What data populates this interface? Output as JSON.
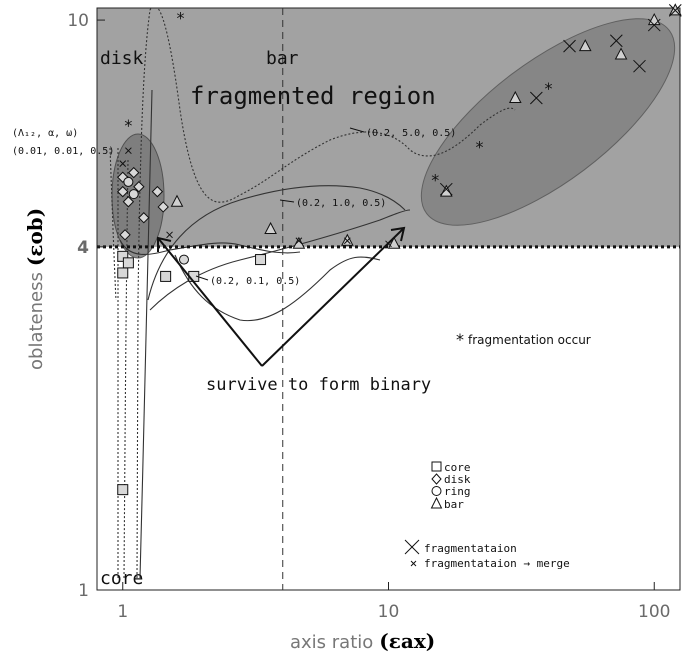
{
  "chart_data": {
    "type": "scatter",
    "xlabel": "axis ratio",
    "xlabel_symbol": "(εax)",
    "ylabel": "oblateness",
    "ylabel_symbol": "(εob)",
    "xscale": "log",
    "yscale": "log",
    "xlim": [
      0.8,
      125
    ],
    "ylim": [
      1,
      10.5
    ],
    "x_ticks": [
      1,
      10,
      100
    ],
    "x_tick_labels": [
      "1",
      "10",
      "100"
    ],
    "y_ticks": [
      1,
      4,
      10
    ],
    "y_tick_labels": [
      "1",
      "4",
      "10"
    ],
    "reference_lines": [
      {
        "orientation": "horizontal",
        "value": 4,
        "style": "dotted"
      },
      {
        "orientation": "vertical",
        "value": 4,
        "style": "dashed"
      }
    ],
    "regions": {
      "core": "core",
      "disk": "disk",
      "bar": "bar",
      "fragmented": "fragmented region"
    },
    "param_header": "(Λ₁₂, α, ω)",
    "annotations": {
      "p1": "(0.01, 0.01, 0.5)",
      "p2": "(0.2, 5.0, 0.5)",
      "p3": "(0.2, 1.0, 0.5)",
      "p4": "(0.2, 0.1, 0.5)",
      "frag_note": "fragmentation occur",
      "survive": "survive to form binary"
    },
    "legend": {
      "core": "core",
      "disk": "disk",
      "ring": "ring",
      "bar": "bar",
      "frag": "fragmentataion",
      "frag_merge": "fragmentataion → merge"
    },
    "series": [
      {
        "name": "core",
        "marker": "square",
        "points": [
          [
            1.0,
            1.5
          ],
          [
            1.0,
            3.6
          ],
          [
            1.0,
            3.85
          ],
          [
            1.05,
            3.75
          ],
          [
            1.45,
            3.55
          ],
          [
            1.85,
            3.55
          ],
          [
            3.3,
            3.8
          ]
        ]
      },
      {
        "name": "disk",
        "marker": "diamond",
        "points": [
          [
            1.0,
            5.0
          ],
          [
            1.0,
            5.3
          ],
          [
            1.02,
            4.2
          ],
          [
            1.05,
            4.8
          ],
          [
            1.1,
            5.4
          ],
          [
            1.15,
            5.1
          ],
          [
            1.2,
            4.5
          ],
          [
            1.35,
            5.0
          ],
          [
            1.42,
            4.7
          ]
        ]
      },
      {
        "name": "ring",
        "marker": "circle",
        "points": [
          [
            1.05,
            5.2
          ],
          [
            1.1,
            4.95
          ],
          [
            1.7,
            3.8
          ]
        ]
      },
      {
        "name": "bar",
        "marker": "triangle",
        "points": [
          [
            1.6,
            4.8
          ],
          [
            3.6,
            4.3
          ],
          [
            4.6,
            4.05
          ],
          [
            7.0,
            4.1
          ],
          [
            10.5,
            4.05
          ],
          [
            16.5,
            5.0
          ],
          [
            30,
            7.3
          ],
          [
            55,
            9.0
          ],
          [
            75,
            8.7
          ],
          [
            100,
            10.0
          ],
          [
            120,
            10.4
          ]
        ]
      },
      {
        "name": "fragmentataion",
        "marker": "bigx",
        "points": [
          [
            16.5,
            5.05
          ],
          [
            36,
            7.3
          ],
          [
            48,
            9.0
          ],
          [
            72,
            9.2
          ],
          [
            88,
            8.3
          ],
          [
            100,
            9.8
          ],
          [
            120,
            10.4
          ]
        ]
      },
      {
        "name": "fragmentataion → merge",
        "marker": "smallx",
        "points": [
          [
            1.0,
            5.6
          ],
          [
            1.05,
            5.9
          ],
          [
            1.5,
            4.2
          ],
          [
            4.6,
            4.1
          ],
          [
            7.0,
            4.1
          ],
          [
            10,
            4.05
          ]
        ]
      },
      {
        "name": "fragmentation occur",
        "marker": "star",
        "points": [
          [
            1.65,
            10.1
          ],
          [
            1.05,
            6.55
          ],
          [
            15,
            5.25
          ],
          [
            22,
            6.0
          ],
          [
            40,
            7.6
          ]
        ]
      }
    ]
  }
}
